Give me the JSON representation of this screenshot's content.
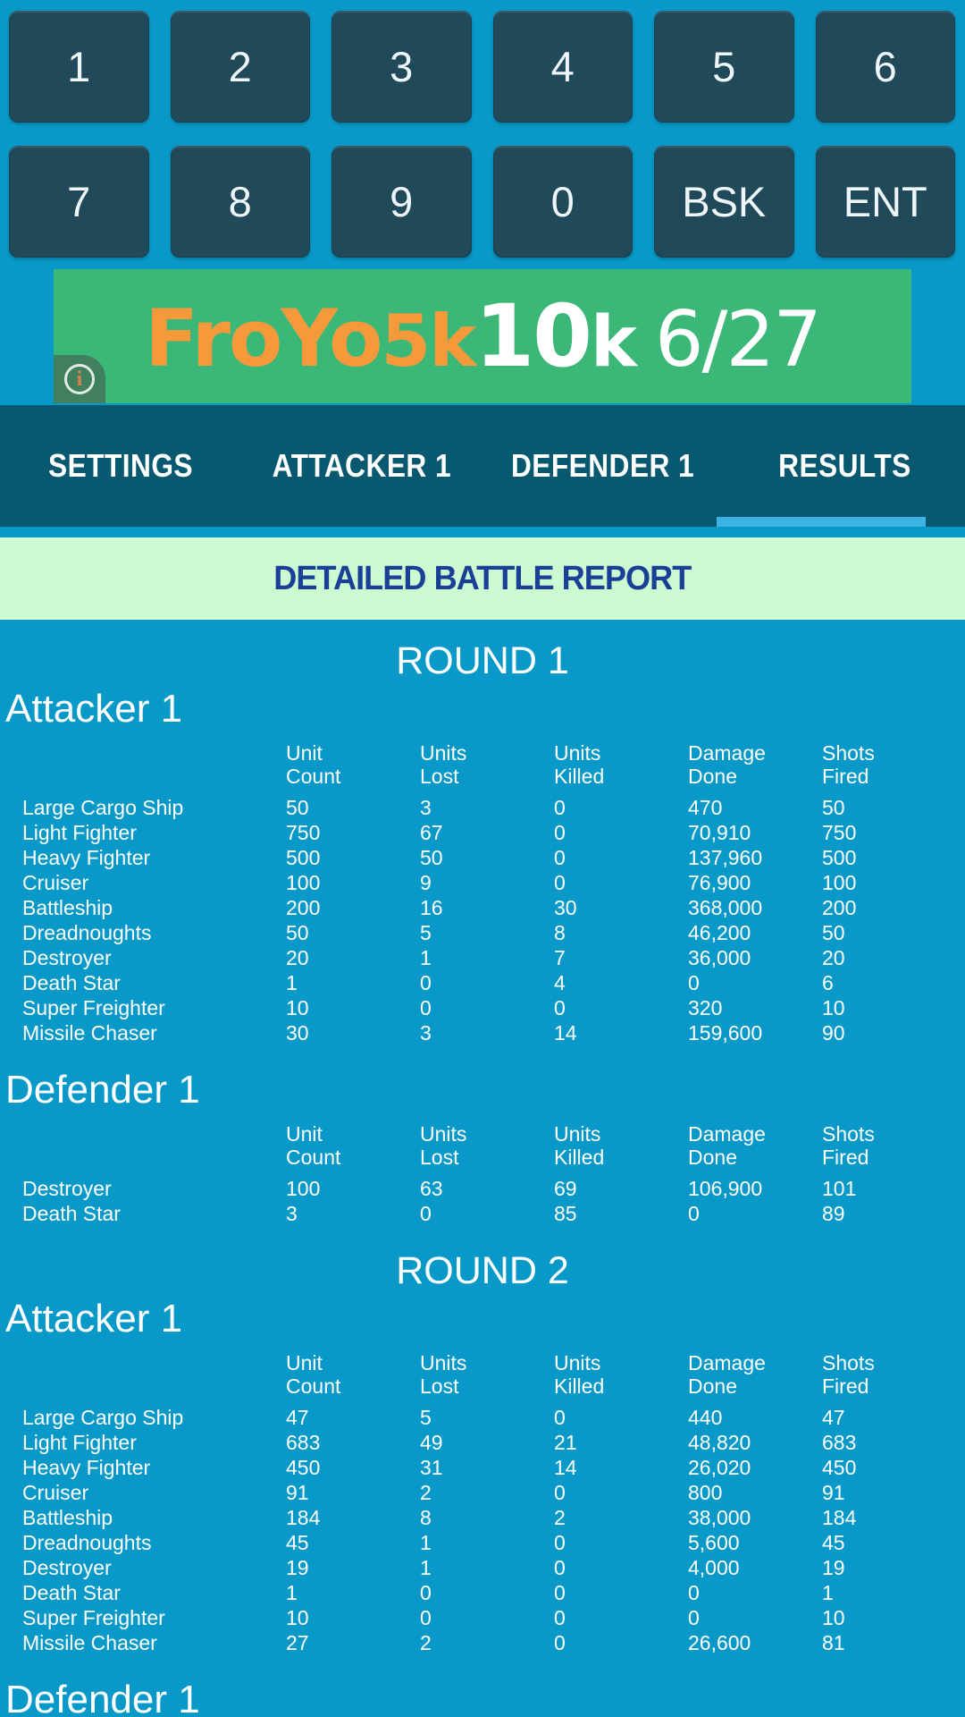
{
  "colors": {
    "bg": "#0899c8",
    "key": "#20495a",
    "keytext": "#eff6f9",
    "tabbar": "#085870",
    "indicator": "#3cb3e2",
    "green": "#ccfbd2",
    "title": "#1a3f96",
    "adgreen": "#3bb877",
    "adorange": "#f6993b",
    "white": "#ffffff"
  },
  "keypad": {
    "rows": [
      [
        "1",
        "2",
        "3",
        "4",
        "5",
        "6"
      ],
      [
        "7",
        "8",
        "9",
        "0",
        "BSK",
        "ENT"
      ]
    ]
  },
  "ad": {
    "brand_froyo": "FroYo",
    "brand_5k": "5k",
    "brand_10": "10",
    "brand_k": "k",
    "date": "6/27",
    "info_icon_glyph": "i"
  },
  "tabs": {
    "items": [
      {
        "label": "SETTINGS",
        "active": false
      },
      {
        "label": "ATTACKER 1",
        "active": false
      },
      {
        "label": "DEFENDER 1",
        "active": false
      },
      {
        "label": "RESULTS",
        "active": true
      }
    ]
  },
  "report": {
    "title": "DETAILED BATTLE REPORT",
    "columns": [
      {
        "line1": "Unit",
        "line2": "Count"
      },
      {
        "line1": "Units",
        "line2": "Lost"
      },
      {
        "line1": "Units",
        "line2": "Killed"
      },
      {
        "line1": "Damage",
        "line2": "Done"
      },
      {
        "line1": "Shots",
        "line2": "Fired"
      }
    ],
    "rounds": [
      {
        "title": "ROUND 1",
        "sections": [
          {
            "title": "Attacker 1",
            "rows": [
              {
                "name": "Large Cargo Ship",
                "values": [
                  "50",
                  "3",
                  "0",
                  "470",
                  "50"
                ]
              },
              {
                "name": "Light Fighter",
                "values": [
                  "750",
                  "67",
                  "0",
                  "70,910",
                  "750"
                ]
              },
              {
                "name": "Heavy Fighter",
                "values": [
                  "500",
                  "50",
                  "0",
                  "137,960",
                  "500"
                ]
              },
              {
                "name": "Cruiser",
                "values": [
                  "100",
                  "9",
                  "0",
                  "76,900",
                  "100"
                ]
              },
              {
                "name": "Battleship",
                "values": [
                  "200",
                  "16",
                  "30",
                  "368,000",
                  "200"
                ]
              },
              {
                "name": "Dreadnoughts",
                "values": [
                  "50",
                  "5",
                  "8",
                  "46,200",
                  "50"
                ]
              },
              {
                "name": "Destroyer",
                "values": [
                  "20",
                  "1",
                  "7",
                  "36,000",
                  "20"
                ]
              },
              {
                "name": "Death Star",
                "values": [
                  "1",
                  "0",
                  "4",
                  "0",
                  "6"
                ]
              },
              {
                "name": "Super Freighter",
                "values": [
                  "10",
                  "0",
                  "0",
                  "320",
                  "10"
                ]
              },
              {
                "name": "Missile Chaser",
                "values": [
                  "30",
                  "3",
                  "14",
                  "159,600",
                  "90"
                ]
              }
            ]
          },
          {
            "title": "Defender 1",
            "rows": [
              {
                "name": "Destroyer",
                "values": [
                  "100",
                  "63",
                  "69",
                  "106,900",
                  "101"
                ]
              },
              {
                "name": "Death Star",
                "values": [
                  "3",
                  "0",
                  "85",
                  "0",
                  "89"
                ]
              }
            ]
          }
        ]
      },
      {
        "title": "ROUND 2",
        "sections": [
          {
            "title": "Attacker 1",
            "rows": [
              {
                "name": "Large Cargo Ship",
                "values": [
                  "47",
                  "5",
                  "0",
                  "440",
                  "47"
                ]
              },
              {
                "name": "Light Fighter",
                "values": [
                  "683",
                  "49",
                  "21",
                  "48,820",
                  "683"
                ]
              },
              {
                "name": "Heavy Fighter",
                "values": [
                  "450",
                  "31",
                  "14",
                  "26,020",
                  "450"
                ]
              },
              {
                "name": "Cruiser",
                "values": [
                  "91",
                  "2",
                  "0",
                  "800",
                  "91"
                ]
              },
              {
                "name": "Battleship",
                "values": [
                  "184",
                  "8",
                  "2",
                  "38,000",
                  "184"
                ]
              },
              {
                "name": "Dreadnoughts",
                "values": [
                  "45",
                  "1",
                  "0",
                  "5,600",
                  "45"
                ]
              },
              {
                "name": "Destroyer",
                "values": [
                  "19",
                  "1",
                  "0",
                  "4,000",
                  "19"
                ]
              },
              {
                "name": "Death Star",
                "values": [
                  "1",
                  "0",
                  "0",
                  "0",
                  "1"
                ]
              },
              {
                "name": "Super Freighter",
                "values": [
                  "10",
                  "0",
                  "0",
                  "0",
                  "10"
                ]
              },
              {
                "name": "Missile Chaser",
                "values": [
                  "27",
                  "2",
                  "0",
                  "26,600",
                  "81"
                ]
              }
            ]
          },
          {
            "title": "Defender 1",
            "rows": []
          }
        ]
      }
    ]
  }
}
